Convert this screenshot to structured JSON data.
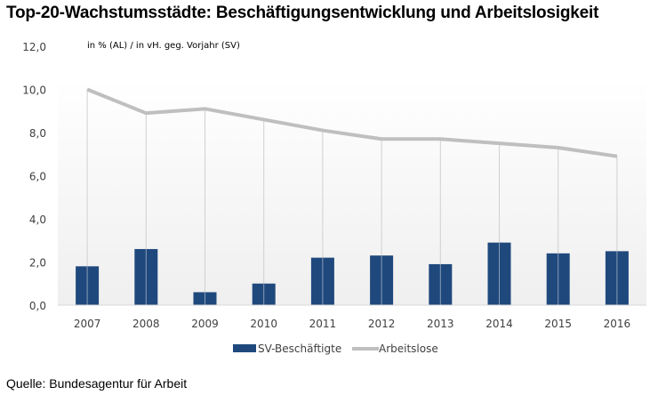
{
  "title": "Top-20-Wachstumsstädte: Beschäftigungsentwicklung und Arbeitslosigkeit",
  "source": "Quelle: Bundesagentur für Arbeit",
  "colors": {
    "bars": "#1f497d",
    "line": "#bfbfbf",
    "grid_drop": "#d0d0d0"
  },
  "chart_data": {
    "type": "bar+line",
    "title": "Top-20-Wachstumsstädte: Beschäftigungsentwicklung und Arbeitslosigkeit",
    "subtitle": "in % (AL) / in vH. geg. Vorjahr (SV)",
    "xlabel": "",
    "ylabel": "",
    "ylim": [
      0,
      12
    ],
    "yticks": [
      "0,0",
      "2,0",
      "4,0",
      "6,0",
      "8,0",
      "10,0",
      "12,0"
    ],
    "ytick_values": [
      0,
      2,
      4,
      6,
      8,
      10,
      12
    ],
    "categories": [
      "2007",
      "2008",
      "2009",
      "2010",
      "2011",
      "2012",
      "2013",
      "2014",
      "2015",
      "2016"
    ],
    "series": [
      {
        "name": "SV-Beschäftigte",
        "type": "bar",
        "values": [
          1.8,
          2.6,
          0.6,
          1.0,
          2.2,
          2.3,
          1.9,
          2.9,
          2.4,
          2.5
        ]
      },
      {
        "name": "Arbeitslose",
        "type": "line",
        "values": [
          10.0,
          8.9,
          9.1,
          8.6,
          8.1,
          7.7,
          7.7,
          7.5,
          7.3,
          6.9
        ]
      }
    ],
    "legend": {
      "position": "bottom"
    },
    "grid": false,
    "drop_lines": true
  }
}
